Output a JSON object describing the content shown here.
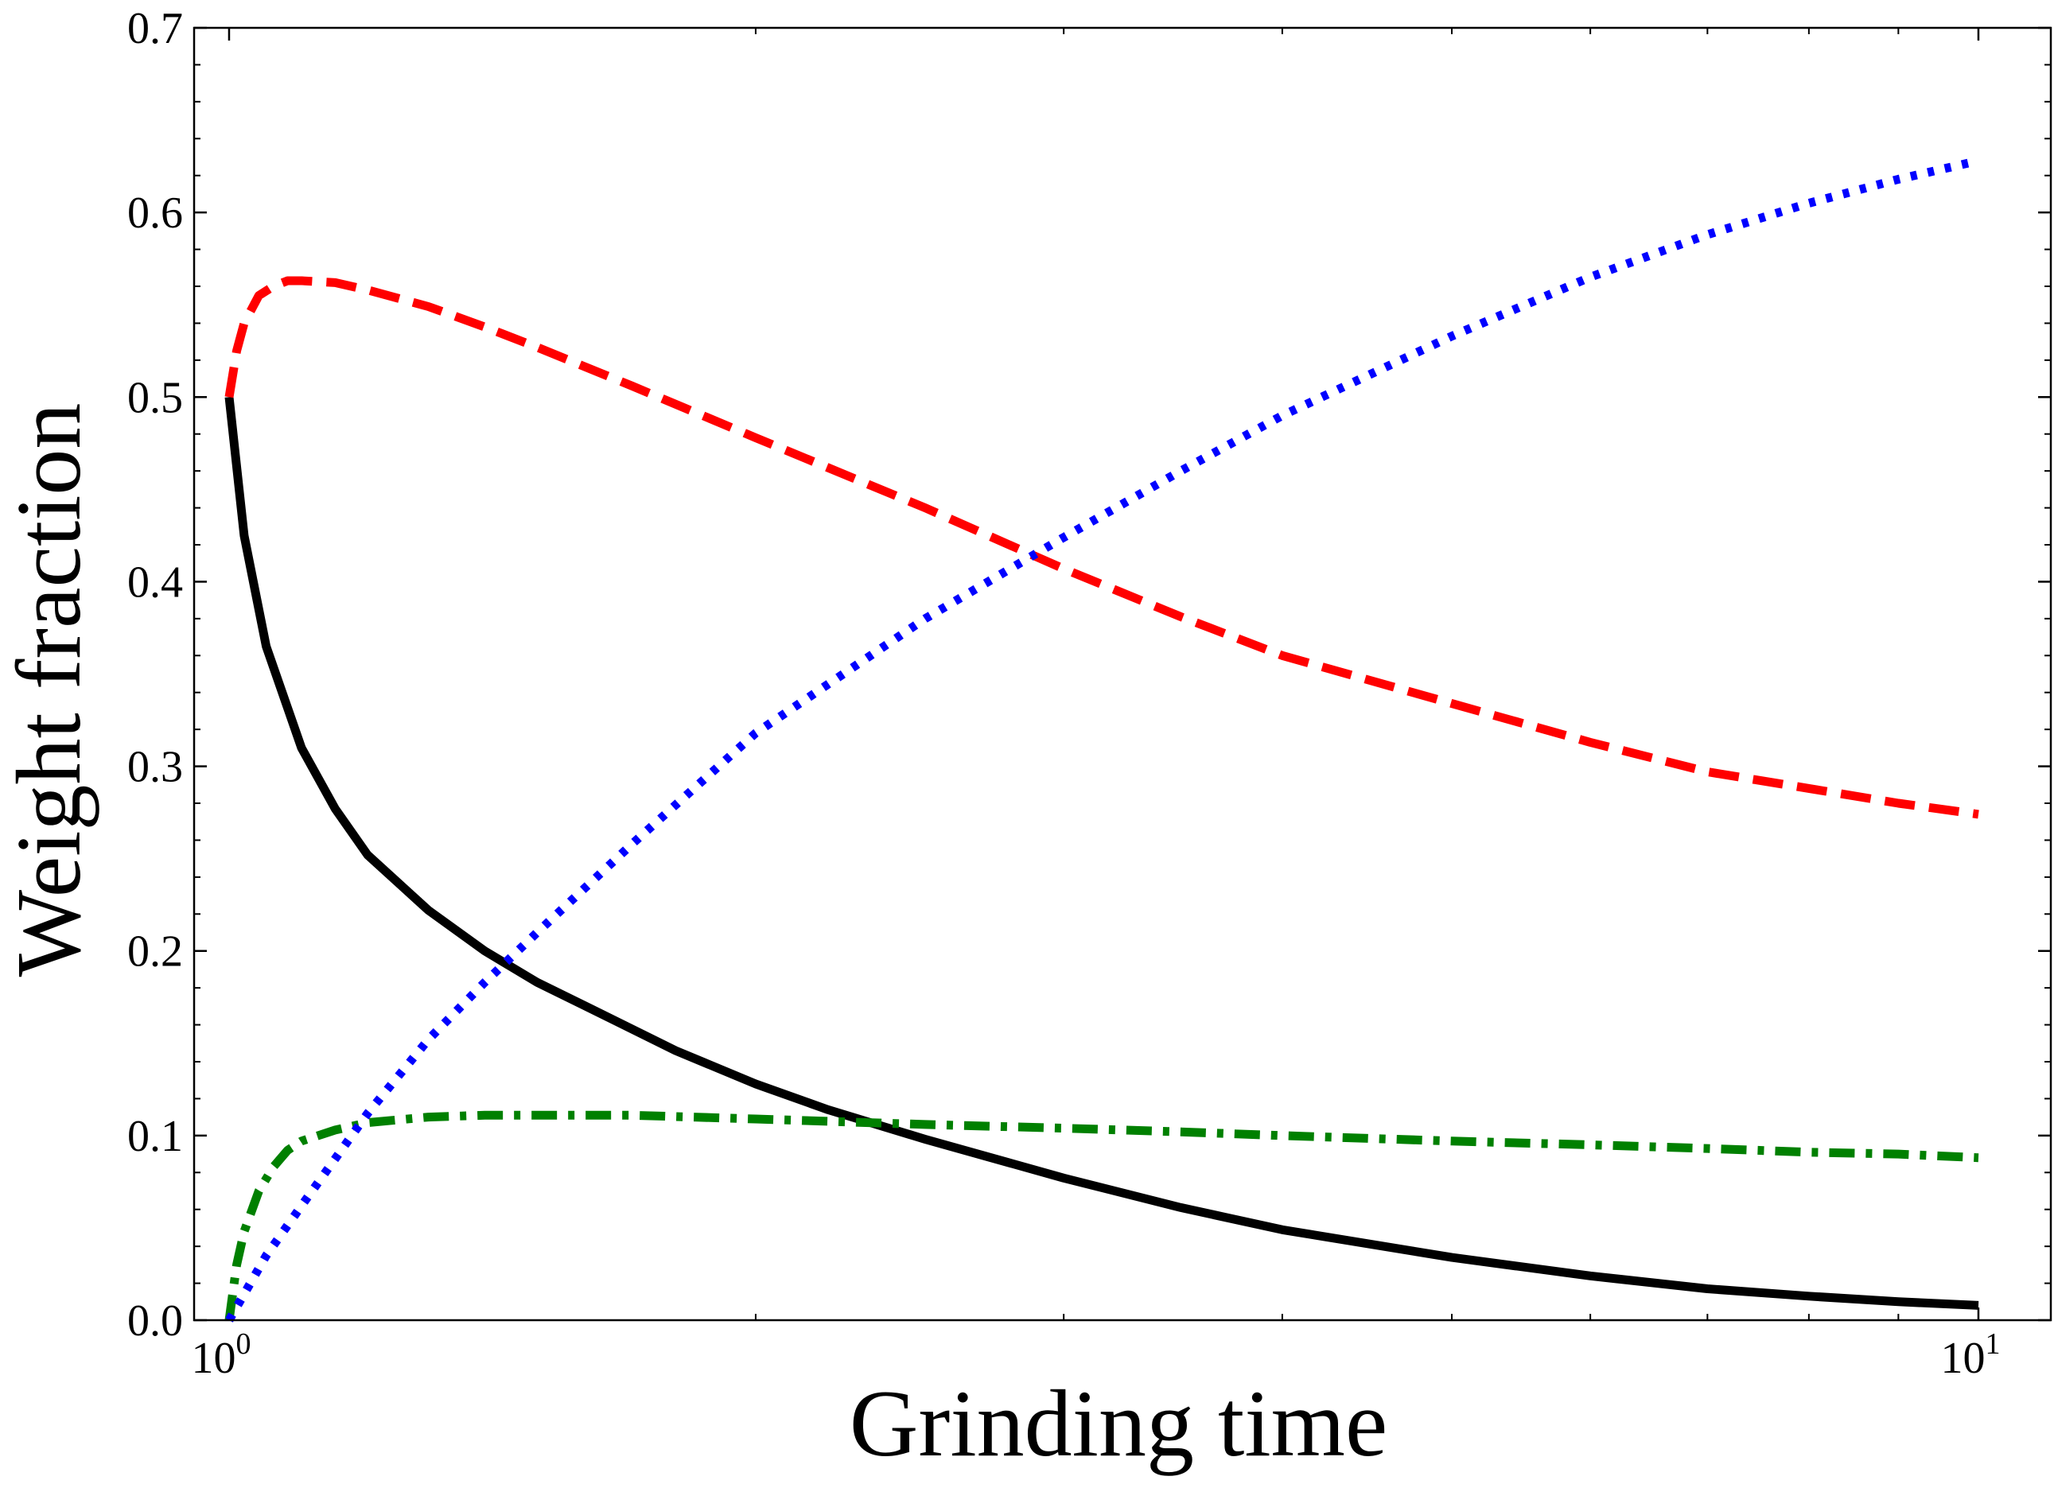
{
  "chart_data": {
    "type": "line",
    "title": "",
    "xlabel": "Grinding time",
    "ylabel": "Weight fraction",
    "xscale": "log",
    "xlim": [
      0.955,
      11.0
    ],
    "ylim": [
      0.0,
      0.7
    ],
    "grid": false,
    "legend": "none",
    "x_ticks": [
      {
        "base": "10",
        "exp": "0",
        "value": 1
      },
      {
        "base": "10",
        "exp": "1",
        "value": 10
      }
    ],
    "y_ticks": [
      "0.0",
      "0.1",
      "0.2",
      "0.3",
      "0.4",
      "0.5",
      "0.6",
      "0.7"
    ],
    "series": [
      {
        "color": "#000000",
        "style": "solid",
        "x": [
          1.0,
          1.02,
          1.05,
          1.1,
          1.15,
          1.2,
          1.3,
          1.4,
          1.5,
          1.6,
          1.8,
          2.0,
          2.2,
          2.5,
          3.0,
          3.5,
          4.0,
          5.0,
          6.0,
          7.0,
          8.0,
          9.0,
          10.0
        ],
        "y": [
          0.5,
          0.425,
          0.365,
          0.31,
          0.277,
          0.252,
          0.222,
          0.2,
          0.183,
          0.17,
          0.146,
          0.128,
          0.114,
          0.098,
          0.077,
          0.061,
          0.049,
          0.034,
          0.024,
          0.017,
          0.013,
          0.01,
          0.008
        ]
      },
      {
        "color": "#ff0000",
        "style": "dashed",
        "x": [
          1.0,
          1.01,
          1.02,
          1.04,
          1.06,
          1.08,
          1.1,
          1.15,
          1.2,
          1.3,
          1.4,
          1.5,
          1.7,
          2.0,
          2.5,
          3.0,
          3.5,
          4.0,
          5.0,
          6.0,
          7.0,
          8.0,
          9.0,
          10.0
        ],
        "y": [
          0.5,
          0.525,
          0.54,
          0.555,
          0.56,
          0.563,
          0.563,
          0.562,
          0.558,
          0.549,
          0.538,
          0.527,
          0.506,
          0.478,
          0.44,
          0.407,
          0.381,
          0.36,
          0.334,
          0.313,
          0.297,
          0.288,
          0.28,
          0.274
        ]
      },
      {
        "color": "#008000",
        "style": "dashdot",
        "x": [
          1.0,
          1.005,
          1.01,
          1.02,
          1.04,
          1.06,
          1.08,
          1.1,
          1.15,
          1.2,
          1.3,
          1.4,
          1.5,
          1.7,
          2.0,
          2.5,
          3.0,
          3.5,
          4.0,
          5.0,
          6.0,
          7.0,
          8.0,
          9.0,
          10.0
        ],
        "y": [
          0.0,
          0.015,
          0.03,
          0.048,
          0.07,
          0.083,
          0.092,
          0.097,
          0.103,
          0.107,
          0.11,
          0.111,
          0.111,
          0.111,
          0.109,
          0.106,
          0.104,
          0.102,
          0.1,
          0.097,
          0.095,
          0.093,
          0.091,
          0.09,
          0.088
        ]
      },
      {
        "color": "#0000ff",
        "style": "dotted",
        "x": [
          1.0,
          1.05,
          1.1,
          1.2,
          1.3,
          1.4,
          1.5,
          1.7,
          2.0,
          2.5,
          3.0,
          3.5,
          4.0,
          5.0,
          6.0,
          7.0,
          8.0,
          9.0,
          10.0
        ],
        "y": [
          0.0,
          0.035,
          0.062,
          0.112,
          0.152,
          0.183,
          0.21,
          0.258,
          0.318,
          0.38,
          0.424,
          0.46,
          0.49,
          0.533,
          0.565,
          0.588,
          0.605,
          0.618,
          0.628
        ]
      }
    ]
  }
}
